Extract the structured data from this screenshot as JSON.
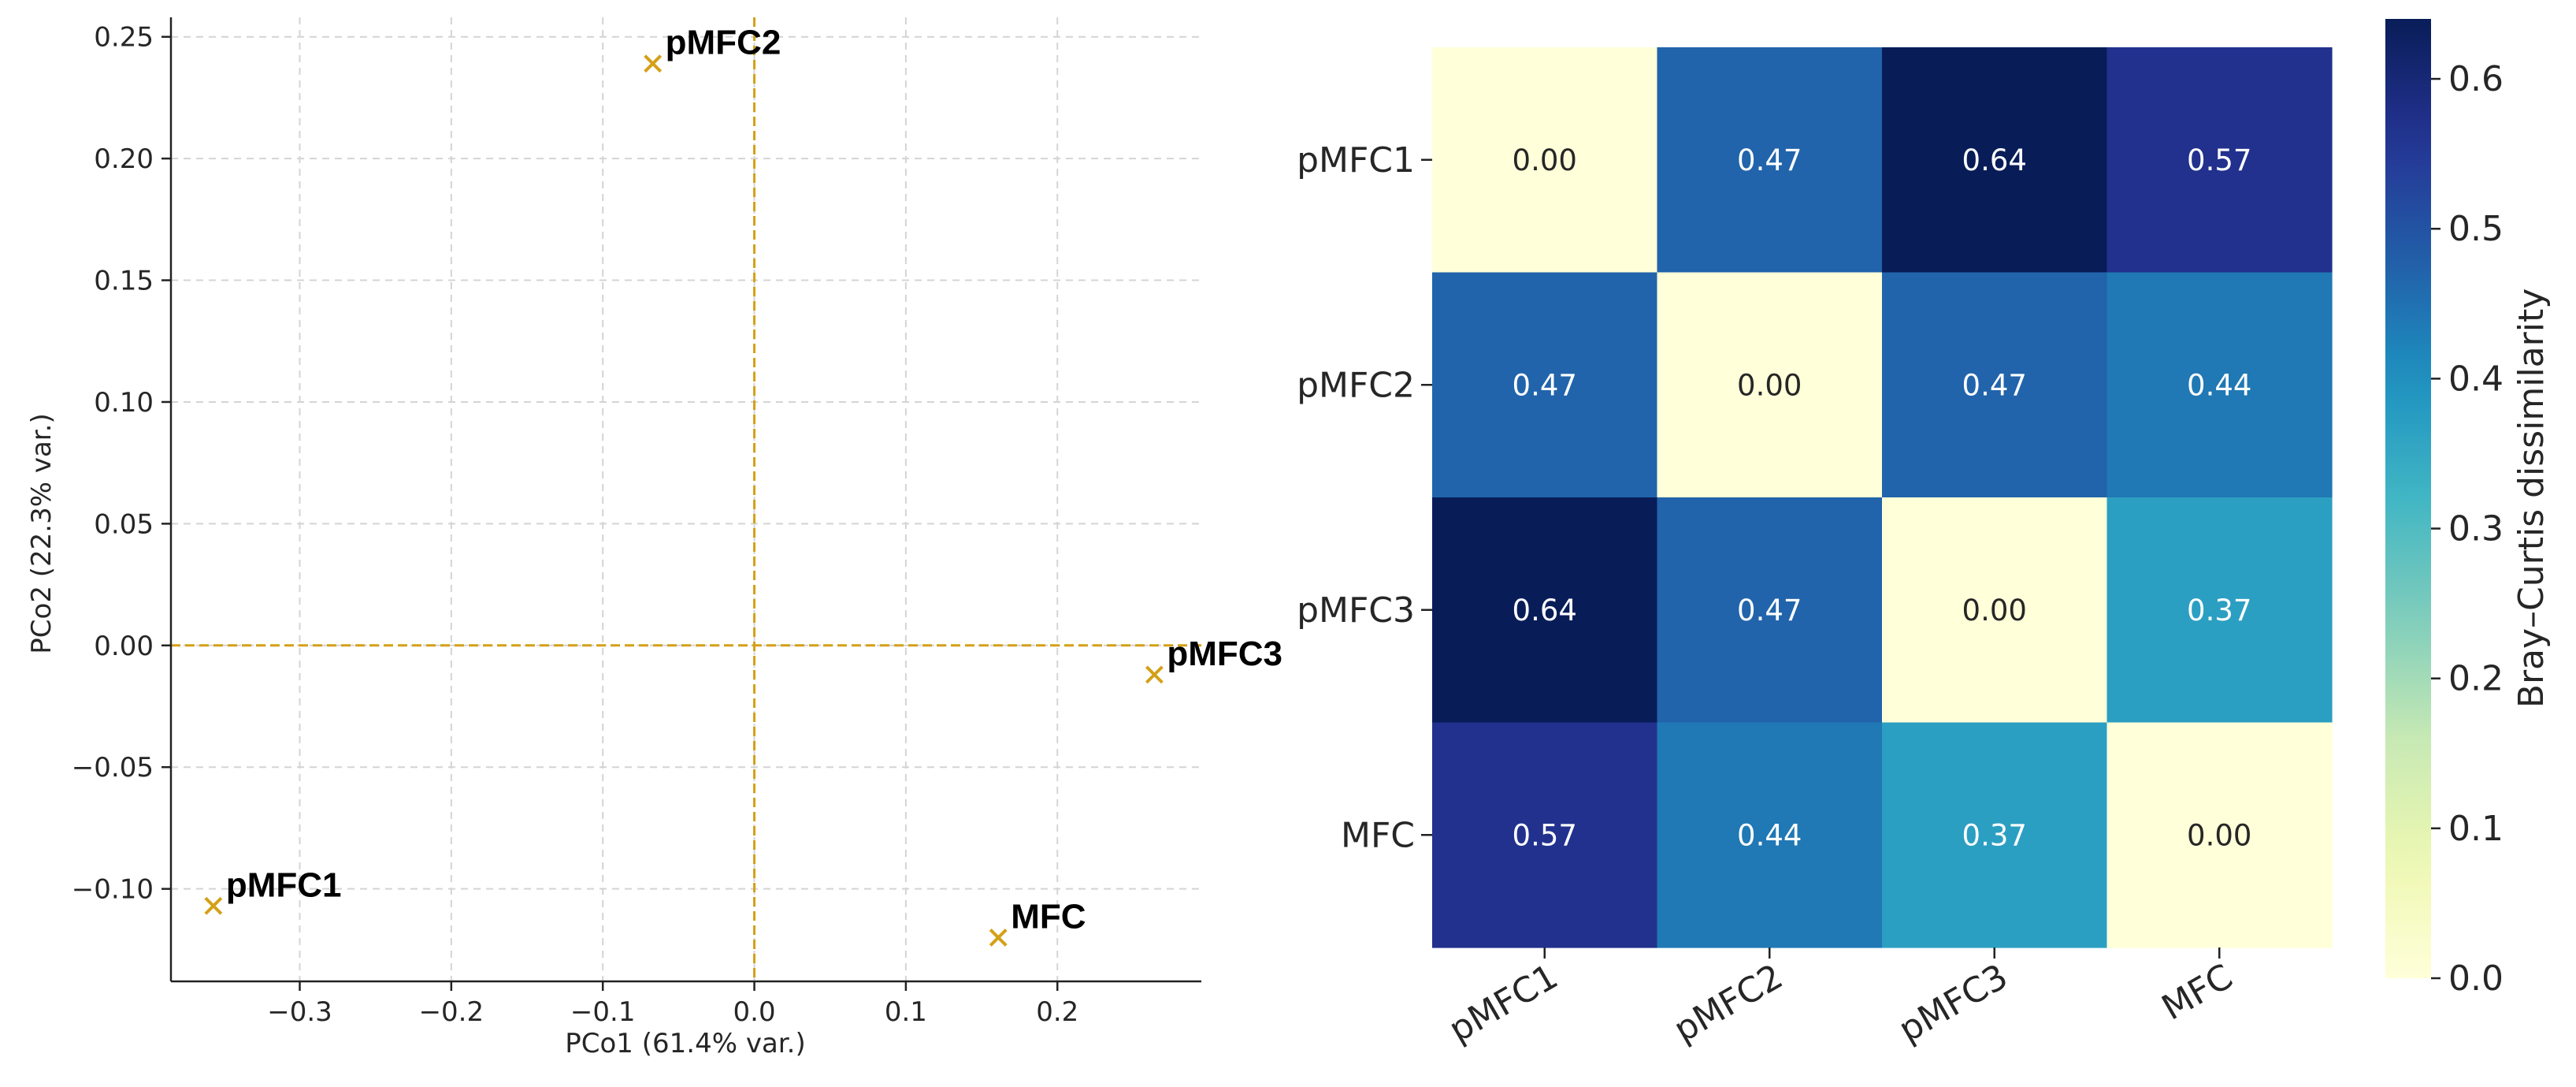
{
  "chart_data": [
    {
      "type": "scatter",
      "title": "",
      "xlabel": "PCo1 (61.4% var.)",
      "ylabel": "PCo2 (22.3% var.)",
      "xlim": [
        -0.385,
        0.295
      ],
      "ylim": [
        -0.138,
        0.258
      ],
      "xticks": [
        -0.3,
        -0.2,
        -0.1,
        0.0,
        0.1,
        0.2
      ],
      "xtick_labels": [
        "−0.3",
        "−0.2",
        "−0.1",
        "0.0",
        "0.1",
        "0.2"
      ],
      "yticks": [
        0.25,
        0.2,
        0.15,
        0.1,
        0.05,
        0.0,
        -0.05,
        -0.1
      ],
      "ytick_labels": [
        "0.25",
        "0.20",
        "0.15",
        "0.10",
        "0.05",
        "0.00",
        "−0.05",
        "−0.10"
      ],
      "grid": true,
      "reference_lines": {
        "x": 0,
        "y": 0
      },
      "marker_color": "#d4a017",
      "points": [
        {
          "label": "pMFC1",
          "x": -0.357,
          "y": -0.107
        },
        {
          "label": "pMFC2",
          "x": -0.067,
          "y": 0.239
        },
        {
          "label": "pMFC3",
          "x": 0.264,
          "y": -0.012
        },
        {
          "label": "MFC",
          "x": 0.161,
          "y": -0.12
        }
      ]
    },
    {
      "type": "heatmap",
      "title": "",
      "rows": [
        "pMFC1",
        "pMFC2",
        "pMFC3",
        "MFC"
      ],
      "columns": [
        "pMFC1",
        "pMFC2",
        "pMFC3",
        "MFC"
      ],
      "values": [
        [
          0.0,
          0.47,
          0.64,
          0.57
        ],
        [
          0.47,
          0.0,
          0.47,
          0.44
        ],
        [
          0.64,
          0.47,
          0.0,
          0.37
        ],
        [
          0.57,
          0.44,
          0.37,
          0.0
        ]
      ],
      "value_labels": [
        [
          "0.00",
          "0.47",
          "0.64",
          "0.57"
        ],
        [
          "0.47",
          "0.00",
          "0.47",
          "0.44"
        ],
        [
          "0.64",
          "0.47",
          "0.00",
          "0.37"
        ],
        [
          "0.57",
          "0.44",
          "0.37",
          "0.00"
        ]
      ],
      "colormap": "YlGnBu",
      "vmin": 0.0,
      "vmax": 0.64,
      "colorbar_label": "Bray–Curtis dissimilarity",
      "colorbar_ticks": [
        0.0,
        0.1,
        0.2,
        0.3,
        0.4,
        0.5,
        0.6
      ],
      "colorbar_tick_labels": [
        "0.0",
        "0.1",
        "0.2",
        "0.3",
        "0.4",
        "0.5",
        "0.6"
      ]
    }
  ]
}
